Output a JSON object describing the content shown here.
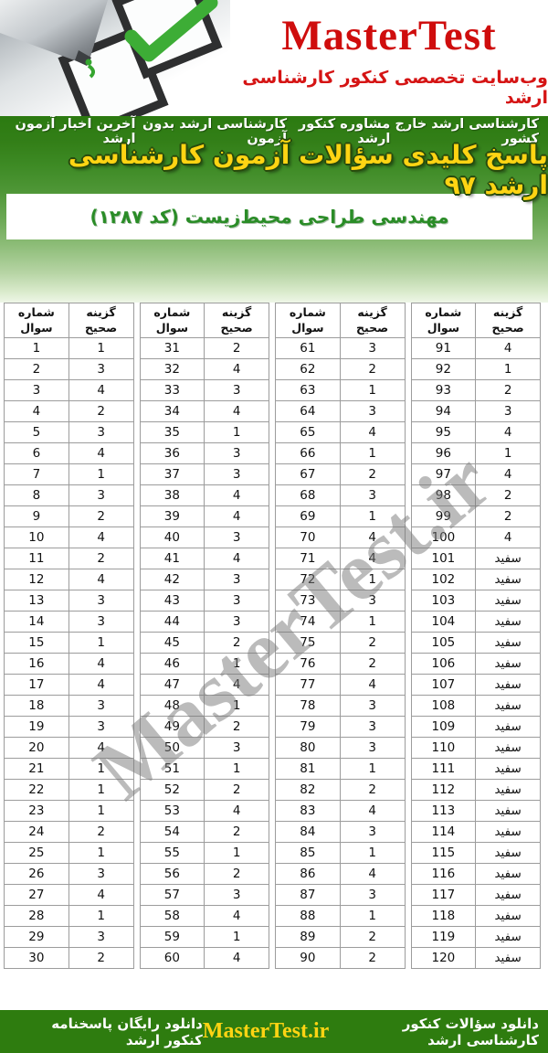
{
  "colors": {
    "brand_red": "#cf0d0d",
    "nav_green": "#2b7a10",
    "footer_green": "#2e7c0f",
    "title_yellow": "#ffd413",
    "subtitle_green": "#2a8c27",
    "watermark_gray": "#787878",
    "checkmark_green": "#3dad36"
  },
  "brand": {
    "logo_text": "MasterTest",
    "tagline": "وب‌سایت تخصصی کنکور کارشناسی ارشد"
  },
  "nav": {
    "items": [
      "آخرین اخبار آزمون ارشد",
      "کارشناسی ارشد بدون آزمون",
      "مشاوره کنکور ارشد",
      "کارشناسی ارشد خارج کشور"
    ]
  },
  "banner": {
    "title": "پاسخ کلیدی سؤالات آزمون کارشناسی ارشد ۹۷",
    "subtitle": "مهندسی طراحی محیط‌زیست (کد ۱۲۸۷)"
  },
  "table_header": {
    "question": "شماره سوال",
    "option": "گزینه صحیح"
  },
  "answers": {
    "blank_label": "سفید",
    "tables": [
      {
        "rows": [
          [
            "1",
            "1"
          ],
          [
            "2",
            "3"
          ],
          [
            "3",
            "4"
          ],
          [
            "4",
            "2"
          ],
          [
            "5",
            "3"
          ],
          [
            "6",
            "4"
          ],
          [
            "7",
            "1"
          ],
          [
            "8",
            "3"
          ],
          [
            "9",
            "2"
          ],
          [
            "10",
            "4"
          ],
          [
            "11",
            "2"
          ],
          [
            "12",
            "4"
          ],
          [
            "13",
            "3"
          ],
          [
            "14",
            "3"
          ],
          [
            "15",
            "1"
          ],
          [
            "16",
            "4"
          ],
          [
            "17",
            "4"
          ],
          [
            "18",
            "3"
          ],
          [
            "19",
            "3"
          ],
          [
            "20",
            "4"
          ],
          [
            "21",
            "1"
          ],
          [
            "22",
            "1"
          ],
          [
            "23",
            "1"
          ],
          [
            "24",
            "2"
          ],
          [
            "25",
            "1"
          ],
          [
            "26",
            "3"
          ],
          [
            "27",
            "4"
          ],
          [
            "28",
            "1"
          ],
          [
            "29",
            "3"
          ],
          [
            "30",
            "2"
          ]
        ]
      },
      {
        "rows": [
          [
            "31",
            "2"
          ],
          [
            "32",
            "4"
          ],
          [
            "33",
            "3"
          ],
          [
            "34",
            "4"
          ],
          [
            "35",
            "1"
          ],
          [
            "36",
            "3"
          ],
          [
            "37",
            "3"
          ],
          [
            "38",
            "4"
          ],
          [
            "39",
            "4"
          ],
          [
            "40",
            "3"
          ],
          [
            "41",
            "4"
          ],
          [
            "42",
            "3"
          ],
          [
            "43",
            "3"
          ],
          [
            "44",
            "3"
          ],
          [
            "45",
            "2"
          ],
          [
            "46",
            "1"
          ],
          [
            "47",
            "4"
          ],
          [
            "48",
            "1"
          ],
          [
            "49",
            "2"
          ],
          [
            "50",
            "3"
          ],
          [
            "51",
            "1"
          ],
          [
            "52",
            "2"
          ],
          [
            "53",
            "4"
          ],
          [
            "54",
            "2"
          ],
          [
            "55",
            "1"
          ],
          [
            "56",
            "2"
          ],
          [
            "57",
            "3"
          ],
          [
            "58",
            "4"
          ],
          [
            "59",
            "1"
          ],
          [
            "60",
            "4"
          ]
        ]
      },
      {
        "rows": [
          [
            "61",
            "3"
          ],
          [
            "62",
            "2"
          ],
          [
            "63",
            "1"
          ],
          [
            "64",
            "3"
          ],
          [
            "65",
            "4"
          ],
          [
            "66",
            "1"
          ],
          [
            "67",
            "2"
          ],
          [
            "68",
            "3"
          ],
          [
            "69",
            "1"
          ],
          [
            "70",
            "4"
          ],
          [
            "71",
            "4"
          ],
          [
            "72",
            "1"
          ],
          [
            "73",
            "3"
          ],
          [
            "74",
            "1"
          ],
          [
            "75",
            "2"
          ],
          [
            "76",
            "2"
          ],
          [
            "77",
            "4"
          ],
          [
            "78",
            "3"
          ],
          [
            "79",
            "3"
          ],
          [
            "80",
            "3"
          ],
          [
            "81",
            "1"
          ],
          [
            "82",
            "2"
          ],
          [
            "83",
            "4"
          ],
          [
            "84",
            "3"
          ],
          [
            "85",
            "1"
          ],
          [
            "86",
            "4"
          ],
          [
            "87",
            "3"
          ],
          [
            "88",
            "1"
          ],
          [
            "89",
            "2"
          ],
          [
            "90",
            "2"
          ]
        ]
      },
      {
        "rows": [
          [
            "91",
            "4"
          ],
          [
            "92",
            "1"
          ],
          [
            "93",
            "2"
          ],
          [
            "94",
            "3"
          ],
          [
            "95",
            "4"
          ],
          [
            "96",
            "1"
          ],
          [
            "97",
            "4"
          ],
          [
            "98",
            "2"
          ],
          [
            "99",
            "2"
          ],
          [
            "100",
            "4"
          ],
          [
            "101",
            "سفید"
          ],
          [
            "102",
            "سفید"
          ],
          [
            "103",
            "سفید"
          ],
          [
            "104",
            "سفید"
          ],
          [
            "105",
            "سفید"
          ],
          [
            "106",
            "سفید"
          ],
          [
            "107",
            "سفید"
          ],
          [
            "108",
            "سفید"
          ],
          [
            "109",
            "سفید"
          ],
          [
            "110",
            "سفید"
          ],
          [
            "111",
            "سفید"
          ],
          [
            "112",
            "سفید"
          ],
          [
            "113",
            "سفید"
          ],
          [
            "114",
            "سفید"
          ],
          [
            "115",
            "سفید"
          ],
          [
            "116",
            "سفید"
          ],
          [
            "117",
            "سفید"
          ],
          [
            "118",
            "سفید"
          ],
          [
            "119",
            "سفید"
          ],
          [
            "120",
            "سفید"
          ]
        ]
      }
    ]
  },
  "watermark": "MasterTest.ir",
  "footer": {
    "right_text": "دانلود سؤالات کنکور کارشناسی ارشد",
    "logo_text": "MasterTest.ir",
    "left_text": "دانلود رایگان پاسخنامه کنکور ارشد"
  }
}
